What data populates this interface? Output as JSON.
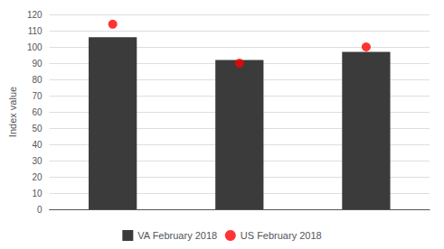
{
  "chart_data": {
    "type": "bar",
    "categories": [
      null,
      null,
      null
    ],
    "series": [
      {
        "name": "VA February 2018",
        "type": "bar",
        "color": "#3b3b3b",
        "values": [
          106,
          92,
          97
        ]
      },
      {
        "name": "US February 2018",
        "type": "scatter",
        "marker": "circle",
        "color": "#ff0000",
        "values": [
          114,
          90,
          100
        ]
      }
    ],
    "ylabel": "Index value",
    "ylim": [
      0,
      120
    ],
    "yticks": [
      0,
      10,
      20,
      30,
      40,
      50,
      60,
      70,
      80,
      90,
      100,
      110,
      120
    ],
    "grid": true,
    "legend": "bottom"
  }
}
